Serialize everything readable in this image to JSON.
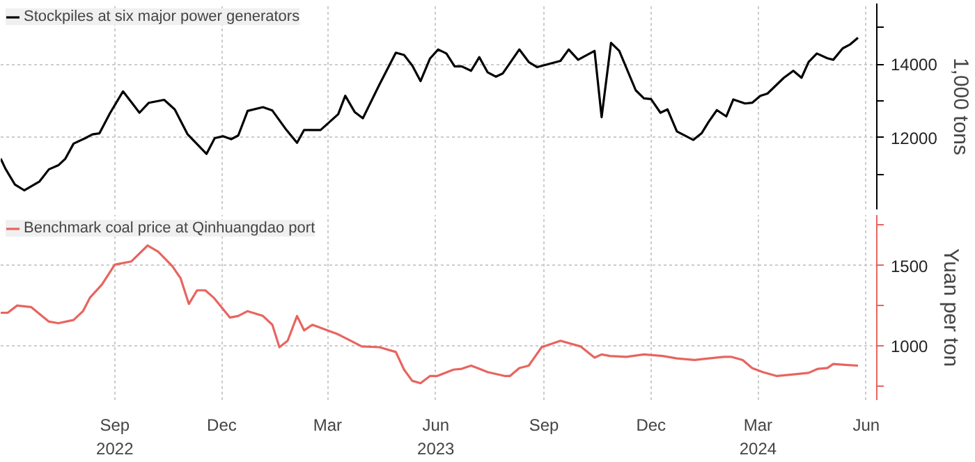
{
  "chart_data": [
    {
      "type": "line",
      "ylabel": "1,000 tons",
      "legend": "top left",
      "grid": true,
      "tick_labels": "y",
      "line_style": "solid",
      "xlim": [
        "2022-05-27",
        "2024-06-10"
      ],
      "xticks": [
        {
          "value": "2022-09-01",
          "label": null
        },
        {
          "value": "2022-12-01",
          "label": null
        },
        {
          "value": "2023-03-01",
          "label": null
        },
        {
          "value": "2023-06-01",
          "label": null
        },
        {
          "value": "2023-09-01",
          "label": null
        },
        {
          "value": "2023-12-01",
          "label": null
        },
        {
          "value": "2024-03-01",
          "label": null
        },
        {
          "value": "2024-06-01",
          "label": null
        }
      ],
      "ylim": [
        10050,
        15650
      ],
      "yticks": [
        {
          "value": 11000,
          "label": null
        },
        12000,
        {
          "value": 13000,
          "label": null
        },
        14000,
        {
          "value": 15000,
          "label": null
        }
      ],
      "series": [
        {
          "name": "Stockpiles at six major power generators",
          "color": "#000000",
          "x": [
            "2022-05-27",
            "2022-05-31",
            "2022-06-08",
            "2022-06-16",
            "2022-06-29",
            "2022-07-07",
            "2022-07-15",
            "2022-07-21",
            "2022-07-28",
            "2022-08-07",
            "2022-08-13",
            "2022-08-19",
            "2022-08-28",
            "2022-09-08",
            "2022-09-16",
            "2022-09-22",
            "2022-09-30",
            "2022-10-13",
            "2022-10-22",
            "2022-11-02",
            "2022-11-18",
            "2022-11-25",
            "2022-12-02",
            "2022-12-09",
            "2022-12-15",
            "2022-12-23",
            "2023-01-05",
            "2023-01-13",
            "2023-01-25",
            "2023-02-03",
            "2023-02-09",
            "2023-02-23",
            "2023-03-10",
            "2023-03-16",
            "2023-03-24",
            "2023-03-31",
            "2023-04-14",
            "2023-04-28",
            "2023-05-05",
            "2023-05-12",
            "2023-05-19",
            "2023-05-27",
            "2023-06-03",
            "2023-06-10",
            "2023-06-17",
            "2023-06-23",
            "2023-07-01",
            "2023-07-08",
            "2023-07-15",
            "2023-07-22",
            "2023-07-28",
            "2023-08-11",
            "2023-08-19",
            "2023-08-26",
            "2023-09-15",
            "2023-09-22",
            "2023-09-30",
            "2023-10-14",
            "2023-10-20",
            "2023-10-28",
            "2023-11-04",
            "2023-11-18",
            "2023-11-25",
            "2023-12-01",
            "2023-12-09",
            "2023-12-15",
            "2023-12-23",
            "2024-01-06",
            "2024-01-13",
            "2024-01-19",
            "2024-01-26",
            "2024-02-03",
            "2024-02-09",
            "2024-02-19",
            "2024-02-25",
            "2024-03-03",
            "2024-03-09",
            "2024-03-23",
            "2024-03-31",
            "2024-04-07",
            "2024-04-13",
            "2024-04-20",
            "2024-04-29",
            "2024-05-04",
            "2024-05-12",
            "2024-05-18",
            "2024-05-25"
          ],
          "values": [
            11430,
            11160,
            10730,
            10570,
            10810,
            11140,
            11250,
            11430,
            11840,
            11990,
            12090,
            12120,
            12670,
            13260,
            12930,
            12680,
            12950,
            13030,
            12770,
            12090,
            11560,
            11990,
            12040,
            11960,
            12060,
            12730,
            12830,
            12740,
            12210,
            11860,
            12210,
            12210,
            12640,
            13140,
            12700,
            12530,
            13440,
            14310,
            14250,
            13960,
            13540,
            14150,
            14400,
            14290,
            13940,
            13940,
            13820,
            14190,
            13780,
            13660,
            13750,
            14400,
            14060,
            13920,
            14090,
            14400,
            14120,
            14360,
            12560,
            14580,
            14360,
            13290,
            13070,
            13050,
            12680,
            12770,
            12170,
            11940,
            12120,
            12430,
            12750,
            12580,
            13040,
            12930,
            12950,
            13140,
            13200,
            13630,
            13820,
            13630,
            14060,
            14290,
            14160,
            14120,
            14430,
            14530,
            14720
          ]
        }
      ]
    },
    {
      "type": "line",
      "ylabel": "Yuan per ton",
      "legend": "top left",
      "grid": true,
      "line_style": "solid",
      "xlim": [
        "2022-05-27",
        "2024-06-10"
      ],
      "xticks": [
        {
          "value": "2022-09-01",
          "label": "Sep\n2022"
        },
        {
          "value": "2022-12-01",
          "label": "Dec"
        },
        {
          "value": "2023-03-01",
          "label": "Mar"
        },
        {
          "value": "2023-06-01",
          "label": "Jun\n2023"
        },
        {
          "value": "2023-09-01",
          "label": "Sep"
        },
        {
          "value": "2023-12-01",
          "label": "Dec"
        },
        {
          "value": "2024-03-01",
          "label": "Mar\n2024"
        },
        {
          "value": "2024-06-01",
          "label": "Jun"
        }
      ],
      "ylim": [
        660,
        1815
      ],
      "yticks": [
        {
          "value": 750,
          "label": null
        },
        1000,
        {
          "value": 1250,
          "label": null
        },
        1500,
        {
          "value": 1750,
          "label": null
        }
      ],
      "series": [
        {
          "name": "Benchmark coal price at Qinhuangdao port",
          "color": "#e8645f",
          "x": [
            "2022-05-27",
            "2022-06-02",
            "2022-06-10",
            "2022-06-22",
            "2022-07-07",
            "2022-07-15",
            "2022-07-28",
            "2022-08-05",
            "2022-08-11",
            "2022-08-21",
            "2022-09-01",
            "2022-09-15",
            "2022-09-29",
            "2022-10-08",
            "2022-10-20",
            "2022-10-27",
            "2022-11-03",
            "2022-11-10",
            "2022-11-17",
            "2022-11-24",
            "2022-12-08",
            "2022-12-15",
            "2022-12-23",
            "2023-01-05",
            "2023-01-13",
            "2023-01-19",
            "2023-01-26",
            "2023-02-03",
            "2023-02-09",
            "2023-02-16",
            "2023-03-10",
            "2023-03-30",
            "2023-04-14",
            "2023-04-28",
            "2023-05-05",
            "2023-05-12",
            "2023-05-19",
            "2023-05-27",
            "2023-06-02",
            "2023-06-16",
            "2023-06-23",
            "2023-07-01",
            "2023-07-08",
            "2023-07-15",
            "2023-07-30",
            "2023-08-03",
            "2023-08-11",
            "2023-08-19",
            "2023-08-30",
            "2023-09-15",
            "2023-10-02",
            "2023-10-14",
            "2023-10-20",
            "2023-10-27",
            "2023-11-10",
            "2023-11-25",
            "2023-12-11",
            "2023-12-23",
            "2024-01-07",
            "2024-01-19",
            "2024-02-01",
            "2024-02-07",
            "2024-02-17",
            "2024-02-25",
            "2024-03-05",
            "2024-03-17",
            "2024-03-31",
            "2024-04-13",
            "2024-04-21",
            "2024-04-29",
            "2024-05-04",
            "2024-05-14",
            "2024-05-25"
          ],
          "values": [
            1205,
            1205,
            1250,
            1240,
            1150,
            1140,
            1160,
            1215,
            1300,
            1380,
            1505,
            1525,
            1625,
            1585,
            1495,
            1420,
            1260,
            1345,
            1345,
            1300,
            1175,
            1185,
            1215,
            1185,
            1130,
            990,
            1030,
            1185,
            1095,
            1130,
            1070,
            995,
            990,
            960,
            850,
            780,
            765,
            810,
            810,
            850,
            855,
            875,
            855,
            835,
            810,
            810,
            860,
            875,
            990,
            1030,
            995,
            925,
            945,
            935,
            930,
            945,
            935,
            920,
            910,
            920,
            930,
            930,
            910,
            860,
            835,
            810,
            820,
            830,
            855,
            860,
            885,
            880,
            875
          ]
        }
      ]
    }
  ]
}
